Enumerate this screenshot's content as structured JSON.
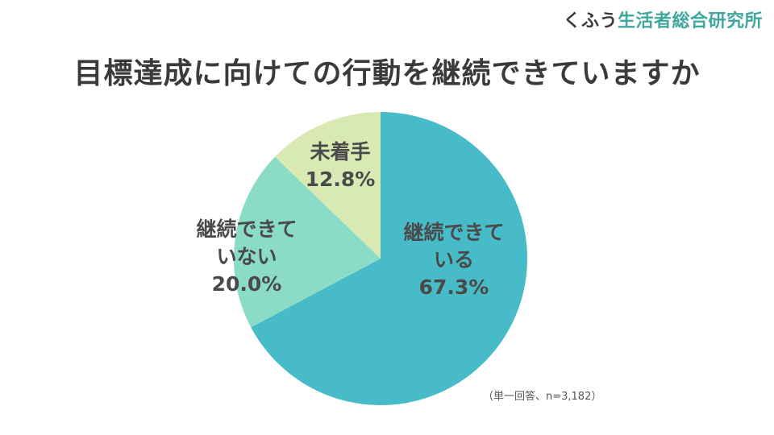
{
  "logo": {
    "prefix": "くふう",
    "suffix": "生活者総合研究所"
  },
  "title": "目標達成に向けての行動を継続できていますか",
  "note": "（単一回答、n=3,182）",
  "colors": {
    "continuing": "#47bcc8",
    "not_continuing": "#8adcc7",
    "not_started": "#d9e9b3",
    "label_text": "#4a4a4a",
    "title_text": "#3a3a3a",
    "logo_accent": "#3fa89e"
  },
  "chart_data": {
    "type": "pie",
    "title": "目標達成に向けての行動を継続できていますか",
    "start": "12 o'clock, clockwise",
    "slices": [
      {
        "label_lines": [
          "継続できて",
          "いる"
        ],
        "value": 67.3,
        "display": "67.3%",
        "color": "#47bcc8"
      },
      {
        "label_lines": [
          "継続できて",
          "いない"
        ],
        "value": 20.0,
        "display": "20.0%",
        "color": "#8adcc7"
      },
      {
        "label_lines": [
          "未着手"
        ],
        "value": 12.8,
        "display": "12.8%",
        "color": "#d9e9b3"
      }
    ]
  }
}
